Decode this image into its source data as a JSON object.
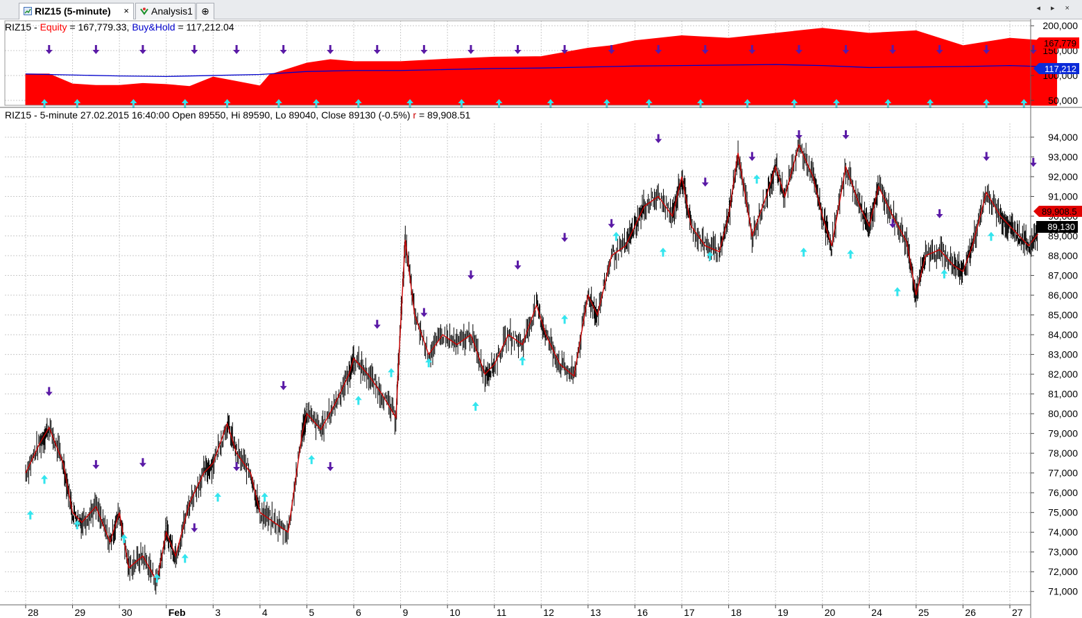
{
  "tabs": [
    {
      "label": "RIZ15 (5-minute)",
      "close": "×"
    },
    {
      "label": "Analysis1"
    },
    {
      "label": "⊕"
    }
  ],
  "nav": {
    "arrows": "◂ ▸ ×"
  },
  "equity_pane": {
    "symbol": "RIZ15",
    "sep1": " - ",
    "equity_label": "Equity",
    "equity_value": " = 167,779.33, ",
    "bh_label": "Buy&Hold",
    "bh_value": " = 117,212.04",
    "equity_tag": "167,779",
    "bh_tag": "117,212",
    "colors": {
      "equity": "#ff0000",
      "buyhold": "#0000cc"
    }
  },
  "price_pane": {
    "title_prefix": "RIZ15 - 5-minute 27.02.2015 16:40:00 Open 89550, Hi 89590, Lo 89040, Close 89130 (-0.5%) ",
    "title_r_label": "r",
    "title_r_value": " = 89,908.51",
    "r_tag": "89,908.5",
    "close_tag": "89,130",
    "colors": {
      "r_line": "#cc0000",
      "bars": "#000000",
      "buy_arrow": "#33e5ee",
      "sell_arrow": "#5a1aa6"
    }
  },
  "chart_data": [
    {
      "type": "area",
      "name": "equity-pane",
      "series": [
        {
          "name": "Equity",
          "color": "#ff0000",
          "x": [
            0,
            0.5,
            1,
            1.5,
            2,
            2.5,
            3,
            3.5,
            4,
            4.5,
            5,
            5.2,
            6,
            6.5,
            7,
            8,
            9,
            10,
            11,
            12,
            12.5,
            13,
            14,
            15,
            16,
            17,
            18,
            19,
            20,
            21,
            22
          ],
          "values": [
            103000,
            103000,
            83000,
            80000,
            80000,
            84000,
            82000,
            78000,
            97000,
            88000,
            79000,
            101000,
            125000,
            132000,
            128000,
            128000,
            133000,
            137000,
            138000,
            155000,
            160000,
            170000,
            180000,
            175000,
            185000,
            195000,
            185000,
            190000,
            160000,
            175000,
            168000
          ]
        },
        {
          "name": "Buy&Hold",
          "color": "#0000cc",
          "x": [
            0,
            1,
            2,
            3,
            4,
            5,
            6,
            7,
            8,
            9,
            10,
            11,
            12,
            13,
            14,
            15,
            16,
            17,
            18,
            19,
            20,
            21,
            22
          ],
          "values": [
            103000,
            101000,
            99000,
            98000,
            100000,
            102000,
            108000,
            110000,
            110000,
            112000,
            114000,
            115000,
            117000,
            119000,
            120000,
            121000,
            122000,
            120000,
            116000,
            117000,
            118000,
            120000,
            117000
          ]
        }
      ],
      "ylim": [
        40000,
        210000
      ],
      "yticks": [
        50000,
        100000,
        150000,
        200000
      ],
      "ytick_labels": [
        "50,000",
        "100,000",
        "150,000",
        "200,000"
      ],
      "sell_arrow_x": [
        0.5,
        1.5,
        2.5,
        3.6,
        4.5,
        5.5,
        6.5,
        7.5,
        8.5,
        9.5,
        10.5,
        11.5,
        12.5,
        13.5,
        14.5,
        15.5,
        16.5,
        17.5,
        18.5,
        19.5,
        20.5,
        21.5
      ],
      "buy_arrow_x": [
        0.4,
        1.1,
        2.3,
        3.4,
        4.3,
        5.4,
        6.2,
        7.1,
        8.2,
        9.3,
        10.1,
        11.2,
        12.4,
        13.3,
        14.4,
        15.4,
        16.4,
        17.3,
        18.4,
        19.3,
        20.5,
        21.3
      ]
    },
    {
      "type": "line",
      "name": "price-pane",
      "x_categories": [
        "28",
        "29",
        "30",
        "Feb",
        "3",
        "4",
        "5",
        "6",
        "9",
        "10",
        "11",
        "12",
        "13",
        "16",
        "17",
        "18",
        "19",
        "20",
        "24",
        "25",
        "26",
        "27"
      ],
      "series": [
        {
          "name": "r",
          "color": "#cc0000",
          "x": [
            0,
            0.3,
            0.5,
            0.8,
            1,
            1.2,
            1.5,
            1.8,
            2,
            2.2,
            2.5,
            2.8,
            3,
            3.2,
            3.5,
            3.8,
            4,
            4.3,
            4.5,
            4.8,
            5,
            5.3,
            5.6,
            5.9,
            6,
            6.3,
            6.6,
            6.9,
            7,
            7.3,
            7.6,
            7.9,
            8,
            8.1,
            8.3,
            8.6,
            8.9,
            9.2,
            9.5,
            9.8,
            10,
            10.3,
            10.6,
            10.9,
            11.1,
            11.4,
            11.7,
            12,
            12.2,
            12.5,
            12.8,
            13,
            13.2,
            13.5,
            13.8,
            14,
            14.2,
            14.5,
            14.8,
            15,
            15.2,
            15.5,
            15.8,
            16,
            16.2,
            16.5,
            16.8,
            17,
            17.2,
            17.5,
            17.8,
            18,
            18.2,
            18.5,
            18.8,
            19,
            19.2,
            19.5,
            19.8,
            20,
            20.2,
            20.5,
            20.8,
            21,
            21.2,
            21.4,
            21.6
          ],
          "values": [
            77000,
            78500,
            79300,
            77500,
            75000,
            74500,
            75300,
            73500,
            75000,
            72200,
            72800,
            71500,
            74000,
            72800,
            75500,
            77000,
            77500,
            79500,
            78000,
            77000,
            75000,
            74500,
            74000,
            79000,
            80000,
            79200,
            80500,
            82000,
            82800,
            82000,
            81000,
            79800,
            84500,
            88800,
            85000,
            83000,
            84000,
            83500,
            84000,
            82000,
            82500,
            84000,
            83500,
            85500,
            84000,
            82500,
            81900,
            86000,
            85000,
            88000,
            88500,
            89500,
            90500,
            91000,
            90000,
            92000,
            89500,
            88500,
            88200,
            90000,
            93200,
            89000,
            91000,
            92500,
            91000,
            93600,
            92000,
            90000,
            88500,
            92500,
            90500,
            89500,
            91500,
            90000,
            88700,
            86000,
            88000,
            88300,
            87500,
            87200,
            88500,
            91200,
            90000,
            89500,
            89000,
            88500,
            89100
          ]
        }
      ],
      "ylim": [
        70500,
        94700
      ],
      "yticks": [
        71000,
        72000,
        73000,
        74000,
        75000,
        76000,
        77000,
        78000,
        79000,
        80000,
        81000,
        82000,
        83000,
        84000,
        85000,
        86000,
        87000,
        88000,
        89000,
        90000,
        91000,
        92000,
        93000,
        94000
      ],
      "ytick_labels": [
        "71,000",
        "72,000",
        "73,000",
        "74,000",
        "75,000",
        "76,000",
        "77,000",
        "78,000",
        "79,000",
        "80,000",
        "81,000",
        "82,000",
        "83,000",
        "84,000",
        "85,000",
        "86,000",
        "87,000",
        "88,000",
        "89,000",
        "90,000",
        "91,000",
        "92,000",
        "93,000",
        "94,000"
      ],
      "sell_arrows": [
        [
          0.5,
          81000
        ],
        [
          1.5,
          77300
        ],
        [
          2.5,
          77400
        ],
        [
          3.6,
          74100
        ],
        [
          4.5,
          77200
        ],
        [
          5.5,
          81300
        ],
        [
          6.5,
          77200
        ],
        [
          7.5,
          84400
        ],
        [
          8.5,
          85000
        ],
        [
          9.5,
          86900
        ],
        [
          10.5,
          87400
        ],
        [
          11.5,
          88800
        ],
        [
          12.5,
          89500
        ],
        [
          13.5,
          93800
        ],
        [
          14.5,
          91600
        ],
        [
          15.5,
          92900
        ],
        [
          16.5,
          94000
        ],
        [
          17.5,
          94000
        ],
        [
          18.5,
          89500
        ],
        [
          19.5,
          90000
        ],
        [
          20.5,
          92900
        ],
        [
          21.5,
          92600
        ]
      ],
      "buy_arrows": [
        [
          0.1,
          75000
        ],
        [
          0.4,
          76800
        ],
        [
          1.1,
          74500
        ],
        [
          2.1,
          73800
        ],
        [
          2.8,
          71800
        ],
        [
          3.4,
          72800
        ],
        [
          4.1,
          75900
        ],
        [
          5.1,
          75900
        ],
        [
          6.1,
          77800
        ],
        [
          7.1,
          80800
        ],
        [
          7.8,
          82200
        ],
        [
          8.6,
          82700
        ],
        [
          9.6,
          80500
        ],
        [
          10.6,
          82800
        ],
        [
          11.5,
          84900
        ],
        [
          12.6,
          89100
        ],
        [
          13.6,
          88300
        ],
        [
          14.6,
          88100
        ],
        [
          15.6,
          92000
        ],
        [
          16.6,
          88300
        ],
        [
          17.6,
          88200
        ],
        [
          18.6,
          86300
        ],
        [
          19.6,
          87200
        ],
        [
          20.6,
          89100
        ]
      ]
    }
  ]
}
